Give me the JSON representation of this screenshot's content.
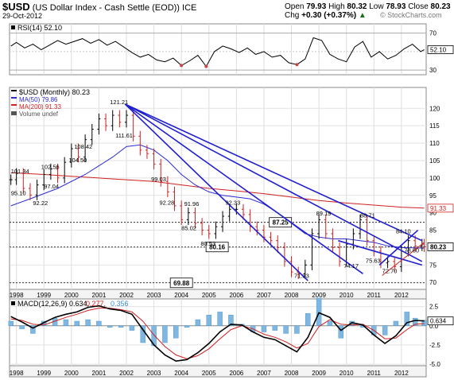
{
  "header": {
    "symbol": "$USD",
    "description": "(US Dollar Index - Cash Settle (EOD))",
    "exchange": "ICE",
    "date": "29-Oct-2012",
    "ohlc": [
      {
        "label": "Open",
        "value": "79.93"
      },
      {
        "label": "High",
        "value": "80.32"
      },
      {
        "label": "Low",
        "value": "78.93"
      },
      {
        "label": "Close",
        "value": "80.23"
      },
      {
        "label": "Chg",
        "value": "+0.30 (+0.37%)"
      }
    ],
    "up_arrow": "▲",
    "watermark": "© StockCharts.com"
  },
  "chart_data": [
    {
      "type": "line",
      "panel": "rsi",
      "legend": "RSI(14) 52.10",
      "current_value": "52.10",
      "ylim": [
        30,
        70
      ],
      "yticks": [
        70,
        50,
        30
      ],
      "overbought": 70,
      "oversold": 30,
      "x": [
        1997.8,
        1998,
        1998.3,
        1998.6,
        1998.9,
        1999.2,
        1999.5,
        1999.8,
        2000.1,
        2000.4,
        2000.7,
        2001,
        2001.3,
        2001.6,
        2001.9,
        2002.2,
        2002.5,
        2002.8,
        2003.1,
        2003.4,
        2003.7,
        2004,
        2004.3,
        2004.6,
        2004.9,
        2005.2,
        2005.5,
        2005.8,
        2006.1,
        2006.4,
        2006.7,
        2007,
        2007.3,
        2007.6,
        2007.9,
        2008.2,
        2008.5,
        2008.8,
        2009.1,
        2009.4,
        2009.7,
        2010,
        2010.3,
        2010.6,
        2010.9,
        2011.2,
        2011.5,
        2011.8,
        2012.1,
        2012.4,
        2012.7,
        2012.83
      ],
      "values": [
        56,
        60,
        54,
        58,
        52,
        57,
        62,
        58,
        61,
        64,
        59,
        63,
        57,
        61,
        55,
        49,
        44,
        47,
        41,
        39,
        43,
        35,
        40,
        46,
        34,
        50,
        56,
        53,
        49,
        54,
        47,
        50,
        44,
        46,
        38,
        36,
        42,
        65,
        62,
        47,
        42,
        39,
        55,
        61,
        44,
        50,
        42,
        46,
        53,
        58,
        50,
        52.1
      ]
    },
    {
      "type": "bar",
      "panel": "price",
      "title": "$USD (Monthly) 80.23",
      "legend": [
        {
          "name": "$USD (Monthly) 80.23",
          "color": "#000000"
        },
        {
          "name": "MA(50) 79.86",
          "color": "#2b2bcf"
        },
        {
          "name": "MA(200) 91.33",
          "color": "#d02020"
        },
        {
          "name": "Volume undef",
          "color": "#555555"
        }
      ],
      "ylim": [
        68,
        126
      ],
      "yticks": [
        120,
        115,
        110,
        105,
        100,
        95,
        90,
        85,
        80,
        75,
        70
      ],
      "x_range": [
        1997.75,
        2012.9
      ],
      "xticks": [
        "1998",
        "1999",
        "2000",
        "2001",
        "2002",
        "2003",
        "2004",
        "2005",
        "2006",
        "2007",
        "2008",
        "2009",
        "2010",
        "2011",
        "2012"
      ],
      "close": {
        "x": [
          1997.8,
          1998,
          1998.25,
          1998.5,
          1998.75,
          1999,
          1999.25,
          1999.5,
          1999.75,
          2000,
          2000.25,
          2000.5,
          2000.75,
          2001,
          2001.25,
          2001.5,
          2001.75,
          2002,
          2002.25,
          2002.5,
          2002.75,
          2003,
          2003.25,
          2003.5,
          2003.75,
          2004,
          2004.25,
          2004.5,
          2004.75,
          2005,
          2005.25,
          2005.5,
          2005.75,
          2006,
          2006.25,
          2006.5,
          2006.75,
          2007,
          2007.25,
          2007.5,
          2007.75,
          2008,
          2008.25,
          2008.5,
          2008.75,
          2009,
          2009.25,
          2009.5,
          2009.75,
          2010,
          2010.25,
          2010.5,
          2010.75,
          2011,
          2011.25,
          2011.5,
          2011.75,
          2012,
          2012.25,
          2012.5,
          2012.75,
          2012.83
        ],
        "values": [
          99.5,
          101.3,
          97,
          95.1,
          98,
          101,
          102.6,
          100,
          104.5,
          108.4,
          106,
          111,
          114,
          117,
          115,
          118,
          116,
          118,
          112,
          108,
          107,
          104,
          99,
          96,
          92,
          88,
          90,
          87,
          85,
          84,
          86,
          89,
          91,
          91,
          89.5,
          86,
          85,
          83,
          82,
          80,
          76,
          73,
          72.5,
          75,
          84,
          88,
          84,
          80,
          76,
          81,
          84,
          88,
          82,
          79,
          75.6,
          76,
          74.5,
          79,
          82,
          80.5,
          81,
          80.23
        ]
      },
      "high_low_range": [
        71.33,
        121.21
      ],
      "ma50": {
        "name": "MA(50) 79.86",
        "x": [
          1997.8,
          1998.5,
          1999.5,
          2000.5,
          2001.5,
          2002,
          2002.5,
          2003,
          2003.5,
          2004,
          2004.5,
          2005,
          2005.5,
          2006,
          2006.5,
          2007,
          2007.5,
          2008,
          2008.5,
          2009,
          2009.5,
          2010,
          2010.5,
          2011,
          2011.5,
          2012,
          2012.83
        ],
        "values": [
          92,
          94,
          97,
          101,
          106,
          109,
          109.5,
          108,
          105,
          101,
          98,
          96,
          95,
          94.5,
          94,
          92.5,
          90,
          87,
          84,
          83,
          82.5,
          82.5,
          82,
          81.5,
          80.5,
          80,
          79.86
        ]
      },
      "ma200": {
        "name": "MA(200) 91.33",
        "x": [
          1997.8,
          1999,
          2000,
          2001,
          2002,
          2003,
          2004,
          2005,
          2006,
          2007,
          2008,
          2009,
          2010,
          2011,
          2012,
          2012.83
        ],
        "values": [
          101.5,
          101,
          100.5,
          100,
          99.5,
          99,
          98,
          97,
          96.3,
          95.5,
          94.5,
          93.5,
          92.8,
          92.2,
          91.6,
          91.33
        ]
      },
      "horizontal_levels": [
        {
          "value": 87.25,
          "label": "87.25"
        },
        {
          "value": 80.16,
          "label": "80.16"
        },
        {
          "value": 69.88,
          "label": "69.88"
        }
      ],
      "trendlines": [
        {
          "from": [
            2001.95,
            121.21
          ],
          "to": [
            2008.6,
            70.5
          ],
          "color": "#1f1fcf"
        },
        {
          "from": [
            2001.95,
            121.21
          ],
          "to": [
            2010.6,
            72.5
          ],
          "color": "#1f1fcf"
        },
        {
          "from": [
            2001.95,
            121.21
          ],
          "to": [
            2012.75,
            76
          ],
          "color": "#1f1fcf"
        },
        {
          "from": [
            2001.95,
            121.21
          ],
          "to": [
            2012.75,
            82
          ],
          "color": "#1f1fcf"
        },
        {
          "from": [
            2009.7,
            82
          ],
          "to": [
            2012.75,
            75
          ],
          "color": "#1f1fcf"
        },
        {
          "from": [
            2011.2,
            75
          ],
          "to": [
            2012.6,
            85
          ],
          "color": "#1f1fcf"
        },
        {
          "from": [
            2011.3,
            72
          ],
          "to": [
            2012.83,
            81.5
          ],
          "color": "#d02020"
        }
      ],
      "annotations": [
        {
          "x": 1997.8,
          "y": 101.34,
          "text": "101.34"
        },
        {
          "x": 1998.9,
          "y": 102.56,
          "text": "102.56"
        },
        {
          "x": 1999.9,
          "y": 104.5,
          "text": "104.50"
        },
        {
          "x": 2001.4,
          "y": 121.21,
          "text": "121.21"
        },
        {
          "x": 1997.8,
          "y": 95.1,
          "text": "95.10"
        },
        {
          "x": 1999.0,
          "y": 97.04,
          "text": "97.04"
        },
        {
          "x": 2000.1,
          "y": 108.42,
          "text": "108.42"
        },
        {
          "x": 2001.6,
          "y": 111.61,
          "text": "111.61"
        },
        {
          "x": 2002.9,
          "y": 99.03,
          "text": "99.03"
        },
        {
          "x": 1998.6,
          "y": 92.22,
          "text": "92.22"
        },
        {
          "x": 2003.2,
          "y": 92.28,
          "text": "92.28"
        },
        {
          "x": 2004.1,
          "y": 91.96,
          "text": "91.96"
        },
        {
          "x": 2005.6,
          "y": 92.33,
          "text": "92.33"
        },
        {
          "x": 2004.0,
          "y": 85.02,
          "text": "85.02"
        },
        {
          "x": 2004.7,
          "y": 80.53,
          "text": "80.53"
        },
        {
          "x": 2008.9,
          "y": 89.19,
          "text": "89.19"
        },
        {
          "x": 2010.5,
          "y": 88.71,
          "text": "88.71"
        },
        {
          "x": 2008.1,
          "y": 71.33,
          "text": "71.33"
        },
        {
          "x": 2009.9,
          "y": 74.17,
          "text": "74.17"
        },
        {
          "x": 2010.7,
          "y": 75.63,
          "text": "75.63"
        },
        {
          "x": 2011.3,
          "y": 72.7,
          "text": "72.70"
        },
        {
          "x": 2011.8,
          "y": 84.1,
          "text": "84.10"
        },
        {
          "x": 2012.1,
          "y": 78.6,
          "text": "78.60"
        }
      ],
      "right_labels": [
        {
          "value": 91.33,
          "text": "91.33",
          "color": "#d02020"
        },
        {
          "value": 80.23,
          "text": "80.23",
          "color": "#000000"
        }
      ]
    },
    {
      "type": "line",
      "panel": "macd",
      "legend": [
        {
          "name": "MACD(12,26,9)",
          "value": "0.634",
          "color": "#000000"
        },
        {
          "name": "",
          "value": "0.277",
          "color": "#d02020"
        },
        {
          "name": "",
          "value": "0.356",
          "color": "#3a8fd0"
        }
      ],
      "current_value": "0.634",
      "ylim": [
        -5.2,
        3.5
      ],
      "yticks": [
        2.5,
        0.0,
        -2.5,
        -5.0
      ],
      "ytick_labels": [
        "2.5",
        "0.0",
        "-2.5",
        "-5.0"
      ],
      "x": [
        1997.8,
        1998.2,
        1998.6,
        1999,
        1999.4,
        1999.8,
        2000.2,
        2000.6,
        2001,
        2001.4,
        2001.8,
        2002.2,
        2002.6,
        2003,
        2003.4,
        2003.8,
        2004.2,
        2004.6,
        2005,
        2005.4,
        2005.8,
        2006.2,
        2006.6,
        2007,
        2007.4,
        2007.8,
        2008.2,
        2008.6,
        2009,
        2009.4,
        2009.8,
        2010.2,
        2010.6,
        2011,
        2011.4,
        2011.8,
        2012.2,
        2012.5,
        2012.83
      ],
      "macd": [
        1.2,
        0.5,
        -0.3,
        0.4,
        1.1,
        1.5,
        1.8,
        2.4,
        2.6,
        2.2,
        2.0,
        1.5,
        -0.5,
        -2.5,
        -3.8,
        -4.6,
        -4.4,
        -3.5,
        -2.3,
        -0.8,
        0.2,
        0.1,
        -0.8,
        -1.5,
        -1.8,
        -2.6,
        -3.4,
        -1.5,
        1.7,
        1.1,
        -0.6,
        0.4,
        0.1,
        -1.2,
        -2.3,
        -1.3,
        0.4,
        0.7,
        0.634
      ],
      "signal": [
        0.9,
        0.7,
        0.2,
        0.1,
        0.6,
        1.1,
        1.5,
        2.0,
        2.3,
        2.3,
        2.1,
        1.8,
        0.6,
        -1.2,
        -2.7,
        -3.8,
        -4.3,
        -3.9,
        -3.0,
        -1.7,
        -0.5,
        0.0,
        -0.4,
        -1.1,
        -1.5,
        -2.1,
        -2.9,
        -2.3,
        -0.1,
        0.8,
        0.2,
        0.1,
        0.2,
        -0.6,
        -1.7,
        -1.6,
        -0.5,
        0.2,
        0.277
      ]
    }
  ],
  "macd_legend_text": "MACD(12,26,9)"
}
